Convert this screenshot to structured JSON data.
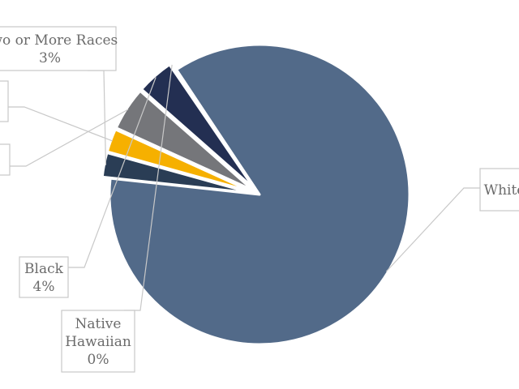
{
  "chart_data": {
    "type": "pie",
    "slices": [
      {
        "label": "White",
        "pct_label": "",
        "value": 82.6,
        "color": "#526a89"
      },
      {
        "label": "Two or More Races",
        "pct_label": "3%",
        "value": 2.5,
        "color": "#2a3d55"
      },
      {
        "label": "",
        "pct_label": "",
        "value": 2.4,
        "color": "#f6b000"
      },
      {
        "label": "",
        "pct_label": "",
        "value": 4.5,
        "color": "#75767a"
      },
      {
        "label": "Black",
        "pct_label": "4%",
        "value": 3.8,
        "color": "#232f52"
      },
      {
        "label": "Native Hawaiian",
        "pct_label": "0%",
        "value": 0.2,
        "color": "#526a89"
      }
    ],
    "title": "",
    "legend": "none"
  }
}
